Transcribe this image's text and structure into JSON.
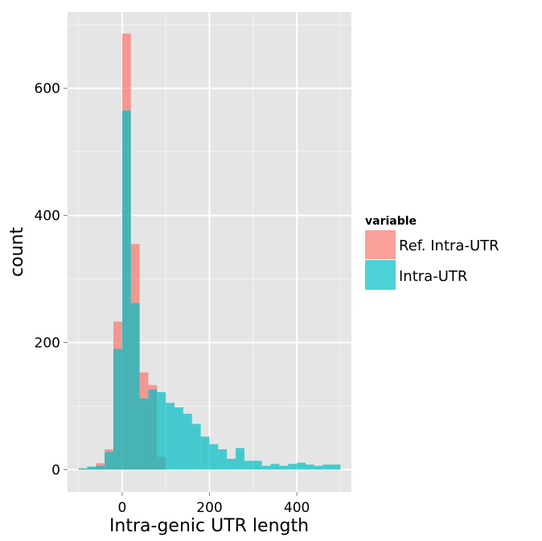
{
  "chart_data": {
    "type": "bar",
    "xlabel": "Intra-genic UTR length",
    "ylabel": "count",
    "xlim": [
      -125,
      525
    ],
    "ylim": [
      -35,
      720
    ],
    "x_ticks": [
      0,
      200,
      400
    ],
    "y_ticks": [
      0,
      200,
      400,
      600
    ],
    "bin_width": 20,
    "bin_starts": [
      -100,
      -80,
      -60,
      -40,
      -20,
      0,
      20,
      40,
      60,
      80,
      100,
      120,
      140,
      160,
      180,
      200,
      220,
      240,
      260,
      280,
      300,
      320,
      340,
      360,
      380,
      400,
      420,
      440,
      460,
      480
    ],
    "grid": true,
    "legend": {
      "title": "variable",
      "position": "right"
    },
    "series": [
      {
        "name": "Ref. Intra-UTR",
        "color": "#F8766D",
        "values": [
          2,
          3,
          10,
          32,
          233,
          686,
          355,
          153,
          133,
          20,
          0,
          0,
          0,
          0,
          0,
          0,
          0,
          0,
          0,
          0,
          0,
          0,
          0,
          0,
          0,
          0,
          0,
          0,
          0,
          0
        ]
      },
      {
        "name": "Intra-UTR",
        "color": "#00BFC4",
        "values": [
          2,
          5,
          6,
          28,
          190,
          565,
          262,
          112,
          126,
          122,
          105,
          98,
          88,
          72,
          52,
          40,
          32,
          17,
          34,
          14,
          14,
          6,
          9,
          6,
          9,
          11,
          8,
          6,
          8,
          8
        ]
      }
    ]
  }
}
